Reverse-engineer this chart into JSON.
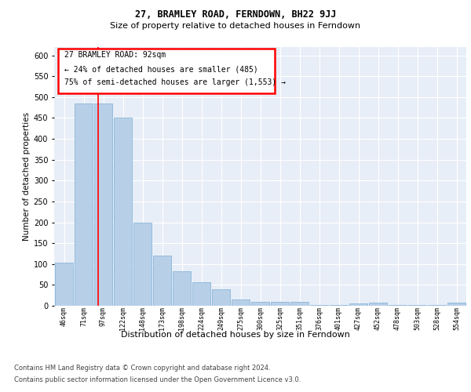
{
  "title": "27, BRAMLEY ROAD, FERNDOWN, BH22 9JJ",
  "subtitle": "Size of property relative to detached houses in Ferndown",
  "xlabel": "Distribution of detached houses by size in Ferndown",
  "ylabel": "Number of detached properties",
  "categories": [
    "46sqm",
    "71sqm",
    "97sqm",
    "122sqm",
    "148sqm",
    "173sqm",
    "198sqm",
    "224sqm",
    "249sqm",
    "275sqm",
    "300sqm",
    "325sqm",
    "351sqm",
    "376sqm",
    "401sqm",
    "427sqm",
    "452sqm",
    "478sqm",
    "503sqm",
    "528sqm",
    "554sqm"
  ],
  "values": [
    103,
    485,
    485,
    450,
    200,
    120,
    82,
    57,
    40,
    15,
    10,
    10,
    10,
    2,
    2,
    5,
    7,
    2,
    2,
    2,
    7
  ],
  "bar_color": "#b8cfe8",
  "bar_edgecolor": "#7aaed4",
  "red_line_x": 1.73,
  "annotation_title": "27 BRAMLEY ROAD: 92sqm",
  "annotation_line1": "← 24% of detached houses are smaller (485)",
  "annotation_line2": "75% of semi-detached houses are larger (1,553) →",
  "ylim": [
    0,
    620
  ],
  "yticks": [
    0,
    50,
    100,
    150,
    200,
    250,
    300,
    350,
    400,
    450,
    500,
    550,
    600
  ],
  "background_color": "#e8eef7",
  "footer_line1": "Contains HM Land Registry data © Crown copyright and database right 2024.",
  "footer_line2": "Contains public sector information licensed under the Open Government Licence v3.0."
}
